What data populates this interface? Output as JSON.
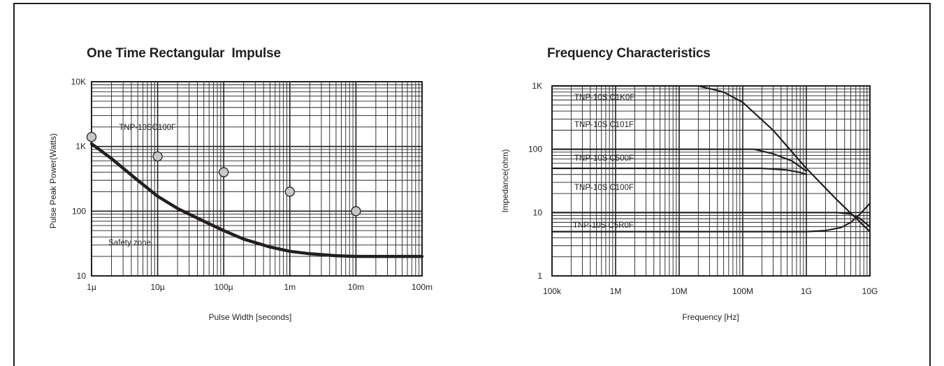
{
  "chart_data": [
    {
      "type": "line",
      "title": "One Time Rectangular  Impulse",
      "xlabel": "Pulse Width [seconds]",
      "ylabel": "Pulse Peak Power(Watts)",
      "xscale": "log",
      "yscale": "log",
      "xlim": [
        1e-06,
        0.1
      ],
      "ylim": [
        10,
        10000
      ],
      "grid": true,
      "x_ticks": [
        {
          "value": 1e-06,
          "label": "1µ"
        },
        {
          "value": 1e-05,
          "label": "10µ"
        },
        {
          "value": 0.0001,
          "label": "100µ"
        },
        {
          "value": 0.001,
          "label": "1m"
        },
        {
          "value": 0.01,
          "label": "10m"
        },
        {
          "value": 0.1,
          "label": "100m"
        }
      ],
      "y_ticks": [
        {
          "value": 10,
          "label": "10"
        },
        {
          "value": 100,
          "label": "100"
        },
        {
          "value": 1000,
          "label": "1K"
        },
        {
          "value": 10000,
          "label": "10K"
        }
      ],
      "series": [
        {
          "name": "TNP-10SC100F",
          "style": "curve",
          "x": [
            1e-06,
            2e-06,
            5e-06,
            1e-05,
            2e-05,
            5e-05,
            0.0001,
            0.0002,
            0.0005,
            0.001,
            0.002,
            0.005,
            0.01,
            0.03,
            0.1
          ],
          "y": [
            1100,
            650,
            300,
            170,
            110,
            70,
            50,
            37,
            28,
            24,
            22,
            20.5,
            20,
            20,
            20
          ]
        },
        {
          "name": "",
          "style": "points",
          "x": [
            1e-06,
            1e-05,
            0.0001,
            0.001,
            0.01
          ],
          "y": [
            1400,
            700,
            400,
            200,
            100
          ]
        }
      ],
      "annotations": [
        {
          "text": "TNP-10SC100F",
          "x": 2.6e-06,
          "y": 1800
        },
        {
          "text": "Safety zone",
          "x": 1.8e-06,
          "y": 30
        }
      ]
    },
    {
      "type": "line",
      "title": "Frequency Characteristics",
      "xlabel": "Frequency [Hz]",
      "ylabel": "Impedance(ohm)",
      "xscale": "log",
      "yscale": "log",
      "xlim": [
        100000,
        10000000000
      ],
      "ylim": [
        1,
        1000
      ],
      "grid": true,
      "x_ticks": [
        {
          "value": 100000,
          "label": "100k"
        },
        {
          "value": 1000000,
          "label": "1M"
        },
        {
          "value": 10000000,
          "label": "10M"
        },
        {
          "value": 100000000,
          "label": "100M"
        },
        {
          "value": 1000000000,
          "label": "1G"
        },
        {
          "value": 10000000000,
          "label": "10G"
        }
      ],
      "y_ticks": [
        {
          "value": 1,
          "label": "1"
        },
        {
          "value": 10,
          "label": "10"
        },
        {
          "value": 100,
          "label": "100"
        },
        {
          "value": 1000,
          "label": "1K"
        }
      ],
      "series": [
        {
          "name": "TNP-10S C1K0F",
          "x": [
            100000,
            20000000,
            50000000,
            100000000,
            300000000,
            1000000000,
            3000000000,
            10000000000
          ],
          "y": [
            1000,
            1000,
            800,
            550,
            200,
            50,
            16,
            5
          ]
        },
        {
          "name": "TNP-10S C101F",
          "x": [
            100000,
            150000000,
            300000000,
            600000000,
            1000000000
          ],
          "y": [
            100,
            100,
            85,
            65,
            45
          ]
        },
        {
          "name": "TNP-10S C500F",
          "x": [
            100000,
            200000000,
            500000000,
            800000000,
            1000000000
          ],
          "y": [
            50,
            50,
            47,
            43,
            40
          ]
        },
        {
          "name": "TNP-10S C100F",
          "x": [
            100000,
            2000000000,
            3000000000,
            5000000000,
            7000000000,
            10000000000
          ],
          "y": [
            10,
            10,
            10,
            9.5,
            8,
            6
          ]
        },
        {
          "name": "TNP-10S C5R0F",
          "x": [
            100000,
            1000000000,
            2000000000,
            3500000000,
            5000000000,
            7000000000,
            10000000000
          ],
          "y": [
            5,
            5,
            5.2,
            5.8,
            7,
            9.5,
            14
          ]
        }
      ]
    }
  ]
}
